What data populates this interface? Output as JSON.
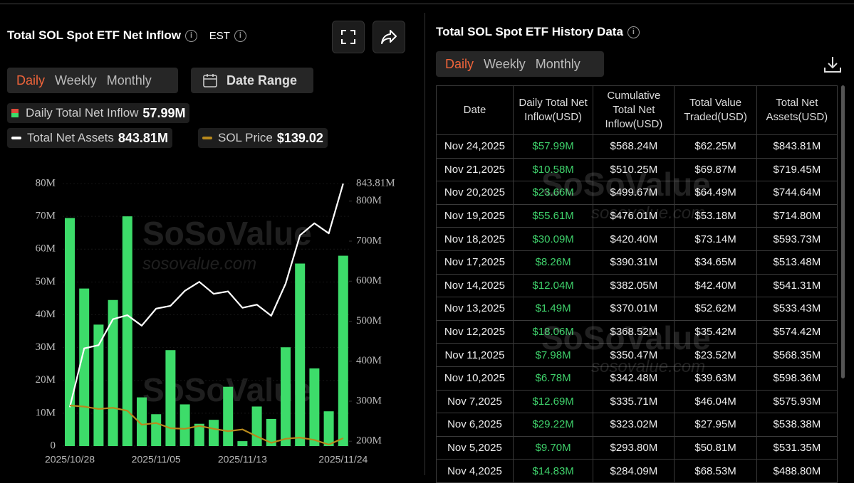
{
  "header": {
    "title": "Total SOL Spot ETF Net Inflow",
    "timezone": "EST",
    "tabs": [
      "Daily",
      "Weekly",
      "Monthly"
    ],
    "date_range": "Date Range"
  },
  "watermark": {
    "brand": "SoSoValue",
    "url": "sosovalue.com"
  },
  "chart_data": {
    "type": "bar",
    "categories": [
      "2025/10/28",
      null,
      null,
      null,
      null,
      null,
      "2025/11/05",
      null,
      null,
      null,
      null,
      null,
      "2025/11/13",
      null,
      null,
      null,
      null,
      null,
      null,
      "2025/11/24"
    ],
    "series": [
      {
        "name": "Daily Total Net Inflow",
        "legend_value": "57.99M",
        "color": "#3ddc6a",
        "values": [
          69.5,
          48,
          37,
          44.5,
          70,
          14.83,
          9.7,
          29.22,
          12.69,
          6.78,
          7.98,
          18.06,
          1.49,
          12.04,
          8.26,
          30.09,
          55.61,
          23.66,
          10.58,
          57.99
        ]
      },
      {
        "name": "Total Net Assets",
        "legend_value": "843.81M",
        "color": "#ffffff",
        "type": "line",
        "axis": "y2",
        "values": [
          285,
          432,
          440,
          505,
          515,
          488.8,
          531.35,
          538.38,
          575.93,
          598.36,
          568.35,
          574.42,
          533.43,
          541.31,
          513.48,
          593.73,
          714.8,
          744.64,
          719.45,
          843.81
        ],
        "value_labels": [
          null,
          null,
          null,
          null,
          null,
          null,
          null,
          null,
          null,
          null,
          null,
          null,
          null,
          null,
          null,
          null,
          null,
          null,
          null,
          "843.81M"
        ]
      },
      {
        "name": "SOL Price",
        "legend_value": "$139.02",
        "color": "#b8891c",
        "type": "line",
        "axis": "y3",
        "values": [
          195,
          193,
          189,
          191,
          186,
          162,
          165,
          156,
          155,
          160,
          155,
          151,
          154,
          142,
          131,
          138,
          140,
          136,
          128,
          139.02
        ]
      }
    ],
    "ylim": [
      0,
      80
    ],
    "yticks": [
      0,
      {
        "value": 10,
        "label": "10M"
      },
      {
        "value": 20,
        "label": "20M"
      },
      {
        "value": 30,
        "label": "30M"
      },
      {
        "value": 40,
        "label": "40M"
      },
      {
        "value": 50,
        "label": "50M"
      },
      {
        "value": 60,
        "label": "60M"
      },
      {
        "value": 70,
        "label": "70M"
      },
      {
        "value": 80,
        "label": "80M"
      }
    ],
    "y2lim": [
      188,
      844
    ],
    "y2ticks": [
      {
        "value": 200,
        "label": "200M"
      },
      {
        "value": 300,
        "label": "300M"
      },
      {
        "value": 400,
        "label": "400M"
      },
      {
        "value": 500,
        "label": "500M"
      },
      {
        "value": 600,
        "label": "600M"
      },
      {
        "value": 700,
        "label": "700M"
      },
      {
        "value": 800,
        "label": "800M"
      }
    ]
  },
  "table": {
    "title": "Total SOL Spot ETF History Data",
    "tabs": [
      "Daily",
      "Weekly",
      "Monthly"
    ],
    "columns": [
      "Date",
      "Daily Total Net Inflow(USD)",
      "Cumulative Total Net Inflow(USD)",
      "Total Value Traded(USD)",
      "Total Net Assets(USD)"
    ],
    "rows": [
      [
        "Nov 24,2025",
        "$57.99M",
        "$568.24M",
        "$62.25M",
        "$843.81M"
      ],
      [
        "Nov 21,2025",
        "$10.58M",
        "$510.25M",
        "$69.87M",
        "$719.45M"
      ],
      [
        "Nov 20,2025",
        "$23.66M",
        "$499.67M",
        "$64.49M",
        "$744.64M"
      ],
      [
        "Nov 19,2025",
        "$55.61M",
        "$476.01M",
        "$53.18M",
        "$714.80M"
      ],
      [
        "Nov 18,2025",
        "$30.09M",
        "$420.40M",
        "$73.14M",
        "$593.73M"
      ],
      [
        "Nov 17,2025",
        "$8.26M",
        "$390.31M",
        "$34.65M",
        "$513.48M"
      ],
      [
        "Nov 14,2025",
        "$12.04M",
        "$382.05M",
        "$42.40M",
        "$541.31M"
      ],
      [
        "Nov 13,2025",
        "$1.49M",
        "$370.01M",
        "$52.62M",
        "$533.43M"
      ],
      [
        "Nov 12,2025",
        "$18.06M",
        "$368.52M",
        "$35.42M",
        "$574.42M"
      ],
      [
        "Nov 11,2025",
        "$7.98M",
        "$350.47M",
        "$23.52M",
        "$568.35M"
      ],
      [
        "Nov 10,2025",
        "$6.78M",
        "$342.48M",
        "$39.63M",
        "$598.36M"
      ],
      [
        "Nov 7,2025",
        "$12.69M",
        "$335.71M",
        "$46.04M",
        "$575.93M"
      ],
      [
        "Nov 6,2025",
        "$29.22M",
        "$323.02M",
        "$27.95M",
        "$538.38M"
      ],
      [
        "Nov 5,2025",
        "$9.70M",
        "$293.80M",
        "$50.81M",
        "$531.35M"
      ],
      [
        "Nov 4,2025",
        "$14.83M",
        "$284.09M",
        "$68.53M",
        "$488.80M"
      ]
    ]
  }
}
